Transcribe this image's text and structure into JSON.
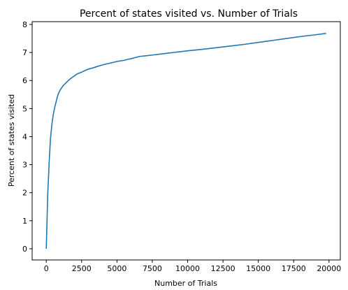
{
  "chart_data": {
    "type": "line",
    "title": "Percent of states visited vs. Number of Trials",
    "xlabel": "Number of Trials",
    "ylabel": "Percent of states visited",
    "xlim": [
      -1000,
      20800
    ],
    "ylim": [
      -0.4,
      8.1
    ],
    "xticks": [
      0,
      2500,
      5000,
      7500,
      10000,
      12500,
      15000,
      17500,
      20000
    ],
    "xtick_labels": [
      "0",
      "2500",
      "5000",
      "7500",
      "10000",
      "12500",
      "15000",
      "17500",
      "20000"
    ],
    "yticks": [
      0,
      1,
      2,
      3,
      4,
      5,
      6,
      7,
      8
    ],
    "ytick_labels": [
      "0",
      "1",
      "2",
      "3",
      "4",
      "5",
      "6",
      "7",
      "8"
    ],
    "grid": false,
    "series": [
      {
        "color": "#1f77b4",
        "x": [
          0,
          100,
          200,
          300,
          400,
          500,
          600,
          700,
          800,
          900,
          1000,
          1200,
          1400,
          1600,
          1800,
          2000,
          2200,
          2500,
          2800,
          3000,
          3300,
          3600,
          4000,
          4500,
          5000,
          5500,
          5800,
          6000,
          6300,
          6600,
          7000,
          7500,
          8000,
          8500,
          9000,
          9500,
          10000,
          11000,
          12000,
          13000,
          14000,
          15000,
          16000,
          17000,
          18000,
          19000,
          19800
        ],
        "y": [
          0.0,
          1.9,
          3.05,
          3.95,
          4.45,
          4.8,
          5.05,
          5.25,
          5.45,
          5.58,
          5.68,
          5.82,
          5.92,
          6.02,
          6.1,
          6.17,
          6.24,
          6.3,
          6.37,
          6.41,
          6.45,
          6.5,
          6.56,
          6.62,
          6.68,
          6.72,
          6.76,
          6.78,
          6.82,
          6.86,
          6.88,
          6.91,
          6.94,
          6.97,
          7.0,
          7.03,
          7.06,
          7.11,
          7.17,
          7.23,
          7.29,
          7.36,
          7.43,
          7.5,
          7.57,
          7.63,
          7.68
        ]
      }
    ]
  }
}
